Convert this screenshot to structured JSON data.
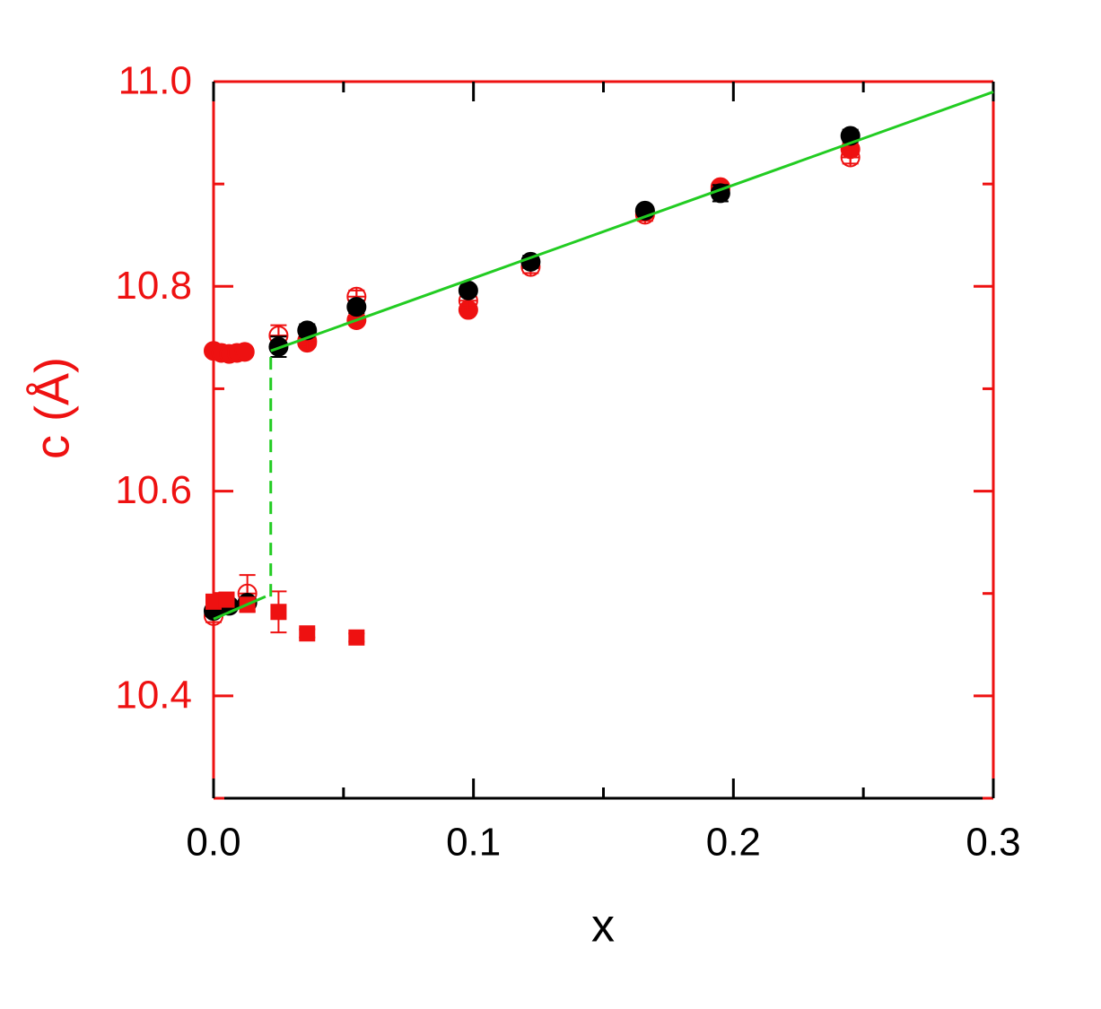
{
  "chart_data": {
    "type": "scatter",
    "xlabel": "x",
    "ylabel": "c (Å)",
    "xlim": [
      0,
      0.3
    ],
    "ylim": [
      10.3,
      11.0
    ],
    "xticks": [
      {
        "value": 0,
        "label": "0.0"
      },
      0.1,
      0.2,
      0.3
    ],
    "yticks": [
      10.4,
      10.6,
      10.8,
      {
        "value": 11.0,
        "label": "11.0"
      }
    ],
    "xminor_ticks": [
      0.05,
      0.15,
      0.25
    ],
    "yminor_ticks": [
      10.3,
      10.5,
      10.7,
      10.9
    ],
    "axis_color": "#ee1111",
    "series": [
      {
        "marker": "circle",
        "filled": true,
        "color": "#ee1111",
        "x": [
          0.0,
          0.003,
          0.006,
          0.009,
          0.012,
          0.036,
          0.055,
          0.098,
          0.166,
          0.195,
          0.245
        ],
        "values": [
          10.737,
          10.735,
          10.734,
          10.735,
          10.736,
          10.745,
          10.767,
          10.777,
          10.873,
          10.897,
          10.934
        ]
      },
      {
        "marker": "circle-cross",
        "filled": false,
        "color": "#ee1111",
        "x": [
          0.0,
          0.013,
          0.025,
          0.036,
          0.055,
          0.098,
          0.122,
          0.166,
          0.195,
          0.245
        ],
        "values": [
          10.478,
          10.5,
          10.752,
          10.747,
          10.79,
          10.786,
          10.819,
          10.87,
          10.895,
          10.926
        ],
        "errors": [
          0.006,
          0.018,
          0.01,
          0.006,
          0.006,
          0.006,
          0.006,
          0.006,
          0.006,
          0.006
        ]
      },
      {
        "marker": "circle",
        "filled": true,
        "color": "#000000",
        "x": [
          0.0,
          0.006,
          0.013,
          0.025,
          0.036,
          0.055,
          0.098,
          0.122,
          0.166,
          0.195,
          0.245
        ],
        "values": [
          10.483,
          10.488,
          10.491,
          10.741,
          10.757,
          10.78,
          10.796,
          10.824,
          10.874,
          10.891,
          10.947
        ],
        "errors": [
          0.004,
          0.004,
          0.004,
          0.01,
          0.006,
          0.006,
          0.004,
          0.006,
          0.004,
          0.008,
          0.006
        ]
      },
      {
        "marker": "square",
        "filled": true,
        "color": "#ee1111",
        "x": [
          0.0,
          0.005,
          0.013,
          0.025,
          0.036,
          0.055
        ],
        "values": [
          10.492,
          10.494,
          10.489,
          10.482,
          10.461,
          10.457
        ],
        "errors": [
          0.006,
          0.006,
          0.006,
          0.02,
          0.004,
          0.004
        ]
      }
    ],
    "lines": [
      {
        "color": "#22cc22",
        "dashed": false,
        "x": [
          0.0,
          0.02
        ],
        "values": [
          10.475,
          10.497
        ]
      },
      {
        "color": "#22cc22",
        "dashed": true,
        "x": [
          0.022,
          0.022
        ],
        "values": [
          10.497,
          10.737
        ]
      },
      {
        "color": "#22cc22",
        "dashed": false,
        "x": [
          0.022,
          0.3
        ],
        "values": [
          10.737,
          10.99
        ]
      }
    ]
  }
}
